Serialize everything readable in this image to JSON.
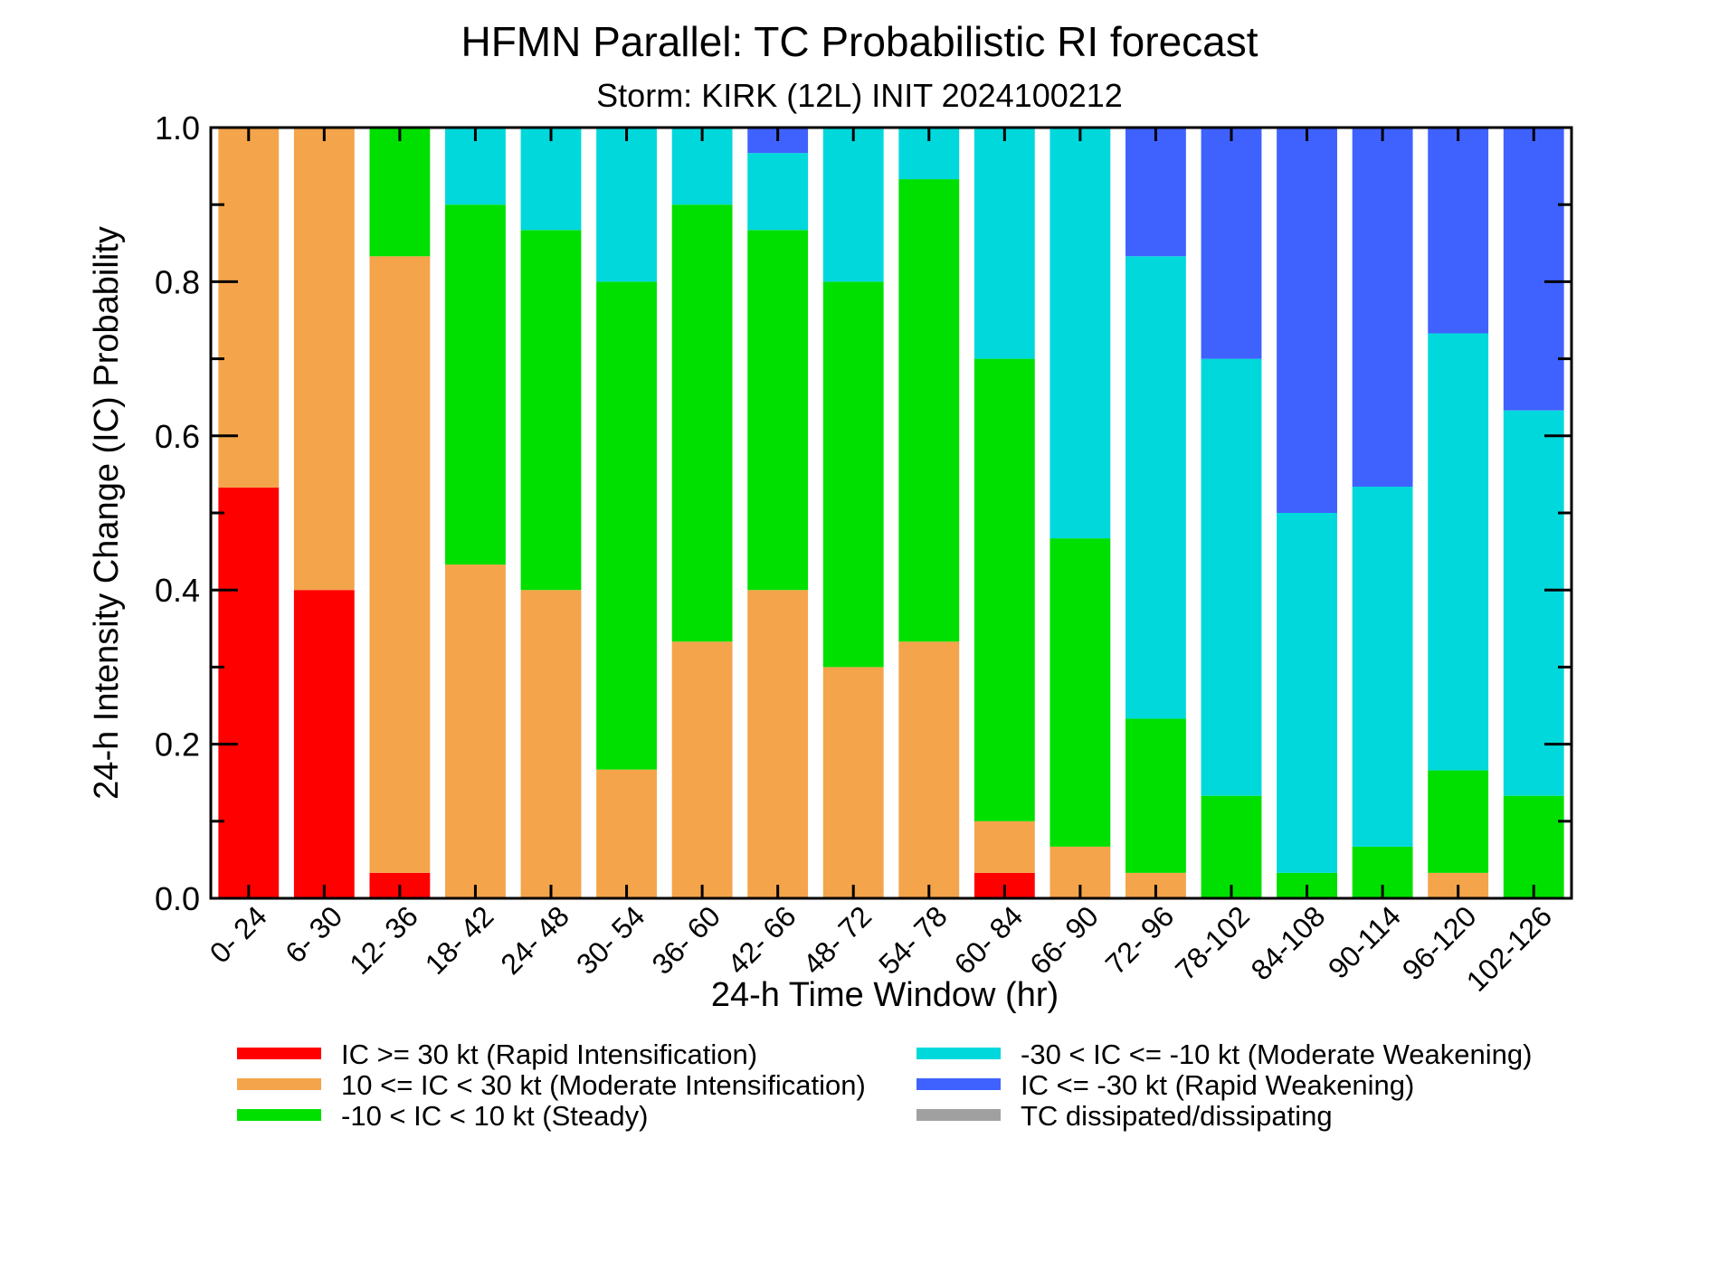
{
  "chart_data": {
    "type": "bar",
    "stacked": true,
    "title": "HFMN Parallel: TC Probabilistic RI forecast",
    "subtitle": "Storm: KIRK (12L) INIT 2024100212",
    "xlabel": "24-h Time Window (hr)",
    "ylabel": "24-h Intensity Change (IC) Probability",
    "ylim": [
      0,
      1.0
    ],
    "yticks": [
      "0.0",
      "0.2",
      "0.4",
      "0.6",
      "0.8",
      "1.0"
    ],
    "grid": false,
    "legend_position": "bottom",
    "categories": [
      "0- 24",
      "6- 30",
      "12- 36",
      "18- 42",
      "24- 48",
      "30- 54",
      "36- 60",
      "42- 66",
      "48- 72",
      "54- 78",
      "60- 84",
      "66- 90",
      "72- 96",
      "78-102",
      "84-108",
      "90-114",
      "96-120",
      "102-126"
    ],
    "series": [
      {
        "name": "IC >= 30 kt (Rapid Intensification)",
        "color": "#ff0000",
        "values": [
          0.533,
          0.4,
          0.033,
          0,
          0,
          0,
          0,
          0,
          0,
          0,
          0.033,
          0,
          0,
          0,
          0,
          0,
          0,
          0
        ]
      },
      {
        "name": "10 <= IC < 30 kt (Moderate Intensification)",
        "color": "#f4a44a",
        "values": [
          0.467,
          0.6,
          0.8,
          0.433,
          0.4,
          0.167,
          0.333,
          0.4,
          0.3,
          0.333,
          0.067,
          0.067,
          0.033,
          0,
          0,
          0,
          0.033,
          0
        ]
      },
      {
        "name": "-10 < IC < 10 kt (Steady)",
        "color": "#00e000",
        "values": [
          0,
          0,
          0.167,
          0.467,
          0.467,
          0.633,
          0.567,
          0.467,
          0.5,
          0.6,
          0.6,
          0.4,
          0.2,
          0.133,
          0.033,
          0.067,
          0.133,
          0.133
        ]
      },
      {
        "name": "-30 < IC <= -10 kt (Moderate Weakening)",
        "color": "#00d8dc",
        "values": [
          0,
          0,
          0,
          0.1,
          0.133,
          0.2,
          0.1,
          0.1,
          0.2,
          0.067,
          0.3,
          0.533,
          0.6,
          0.567,
          0.467,
          0.467,
          0.567,
          0.5
        ]
      },
      {
        "name": "IC <= -30 kt (Rapid Weakening)",
        "color": "#3f62ff",
        "values": [
          0,
          0,
          0,
          0,
          0,
          0,
          0,
          0.033,
          0,
          0,
          0,
          0,
          0.167,
          0.3,
          0.5,
          0.467,
          0.267,
          0.367
        ]
      },
      {
        "name": "TC dissipated/dissipating",
        "color": "#a0a0a0",
        "values": [
          0,
          0,
          0,
          0,
          0,
          0,
          0,
          0,
          0,
          0,
          0,
          0,
          0,
          0,
          0,
          0,
          0,
          0
        ]
      }
    ],
    "legend_layout": [
      [
        0,
        1,
        2
      ],
      [
        3,
        4,
        5
      ]
    ]
  }
}
